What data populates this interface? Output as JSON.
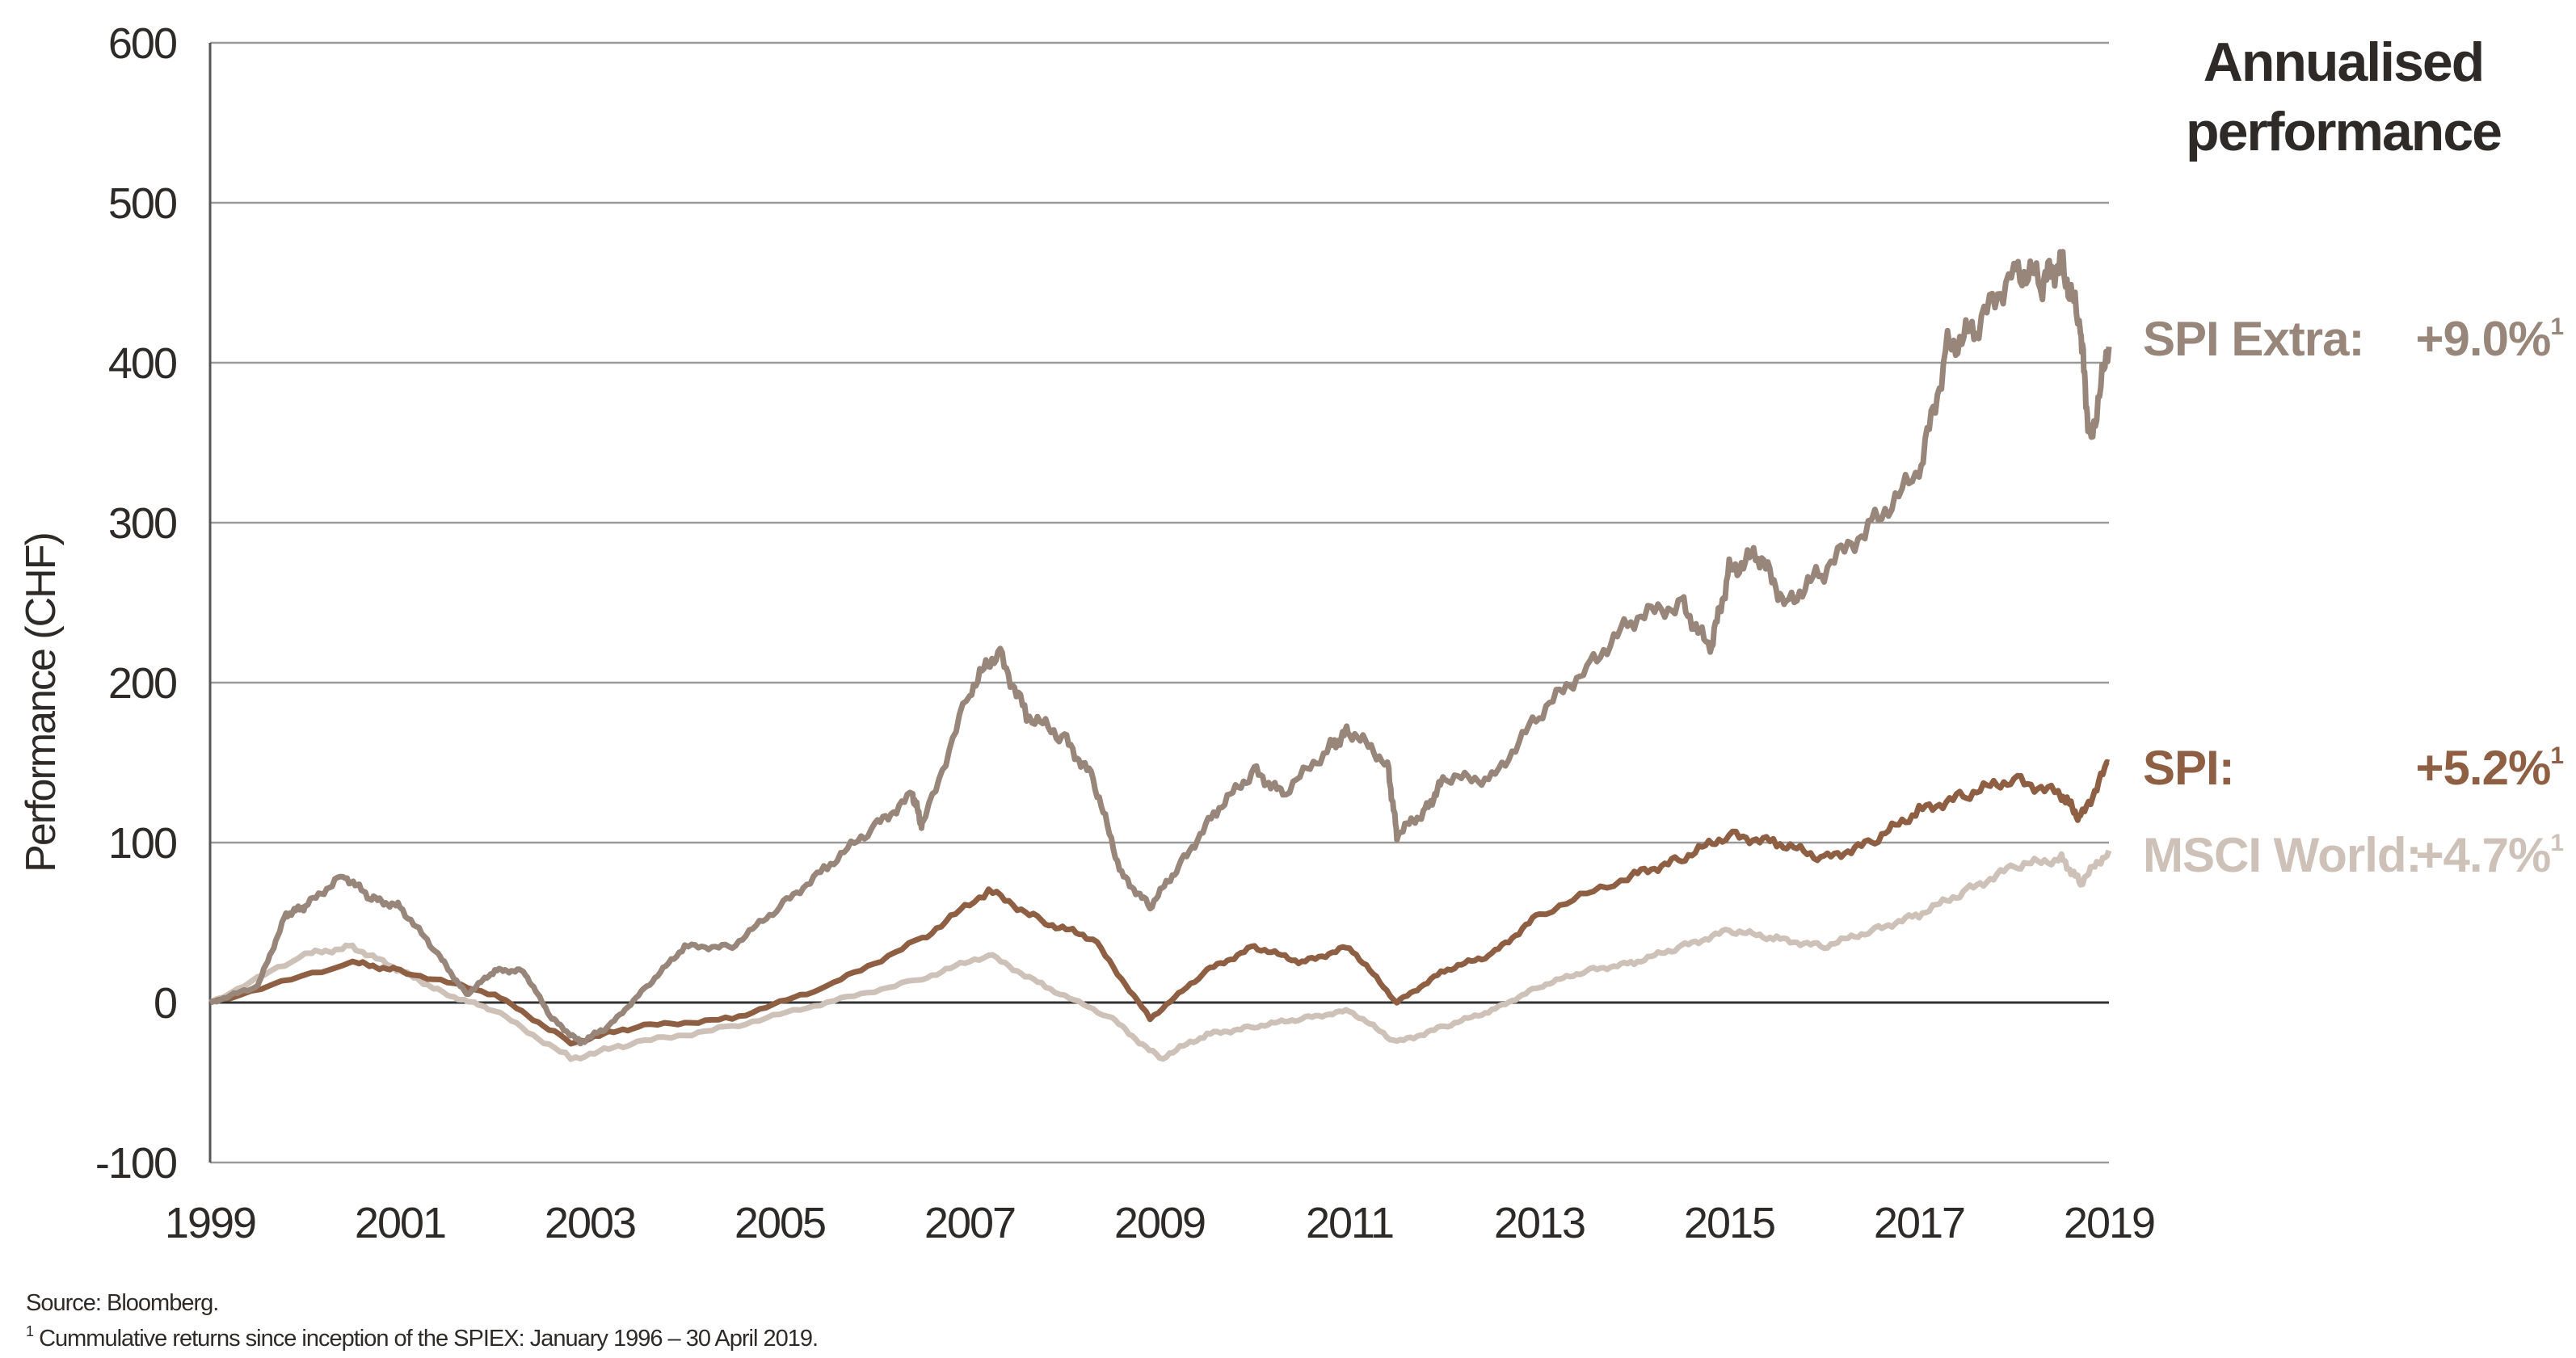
{
  "chart_data": {
    "type": "line",
    "ylabel": "Performance (CHF)",
    "xlabel": "",
    "ylim": [
      -100,
      600
    ],
    "xlim": [
      1999,
      2019
    ],
    "yticks": [
      "600",
      "500",
      "400",
      "300",
      "200",
      "100",
      "0",
      "-100"
    ],
    "ytick_values": [
      600,
      500,
      400,
      300,
      200,
      100,
      0,
      -100
    ],
    "xticks": [
      "1999",
      "2001",
      "2003",
      "2005",
      "2007",
      "2009",
      "2011",
      "2013",
      "2015",
      "2017",
      "2019"
    ],
    "xtick_values": [
      1999,
      2001,
      2003,
      2005,
      2007,
      2009,
      2011,
      2013,
      2015,
      2017,
      2019
    ],
    "grid": "horizontal",
    "legend_title": [
      "Annualised",
      "performance"
    ],
    "series": [
      {
        "name": "SPI Extra:",
        "value_label": "+9.0%",
        "sup": "1",
        "color": "#978679",
        "x": [
          1999,
          1999.5,
          1999.8,
          2000.0,
          2000.4,
          2000.7,
          2001.0,
          2001.4,
          2001.7,
          2002.0,
          2002.3,
          2002.6,
          2002.9,
          2003.2,
          2003.6,
          2004.0,
          2004.5,
          2005.0,
          2005.5,
          2006.0,
          2006.4,
          2006.5,
          2007.0,
          2007.3,
          2007.6,
          2008.0,
          2008.3,
          2008.6,
          2008.9,
          2009.2,
          2009.6,
          2010.0,
          2010.3,
          2010.8,
          2011.0,
          2011.4,
          2011.5,
          2011.8,
          2012.0,
          2012.5,
          2013.0,
          2013.5,
          2014.0,
          2014.5,
          2014.8,
          2015.0,
          2015.3,
          2015.6,
          2016.0,
          2016.5,
          2017.0,
          2017.3,
          2017.6,
          2018.0,
          2018.3,
          2018.5,
          2018.7,
          2018.8,
          2019.0
        ],
        "y": [
          0,
          10,
          55,
          60,
          80,
          65,
          60,
          30,
          5,
          20,
          20,
          -10,
          -25,
          -15,
          10,
          35,
          35,
          60,
          85,
          110,
          130,
          110,
          195,
          220,
          180,
          165,
          140,
          80,
          60,
          85,
          120,
          145,
          130,
          160,
          170,
          150,
          105,
          120,
          140,
          140,
          180,
          210,
          240,
          250,
          220,
          270,
          280,
          250,
          270,
          300,
          330,
          410,
          420,
          460,
          450,
          465,
          420,
          350,
          410
        ]
      },
      {
        "name": "SPI:",
        "value_label": "+5.2%",
        "sup": "1",
        "color": "#8f5f44",
        "x": [
          1999,
          2000.5,
          2001.0,
          2002.0,
          2002.8,
          2003.5,
          2004.5,
          2005.5,
          2006.5,
          2007.2,
          2007.8,
          2008.3,
          2008.9,
          2009.5,
          2010.0,
          2010.5,
          2011.0,
          2011.5,
          2012.0,
          2012.5,
          2013.0,
          2014.0,
          2014.5,
          2015.0,
          2015.5,
          2016.0,
          2016.5,
          2017.0,
          2017.5,
          2018.0,
          2018.5,
          2018.7,
          2019.0
        ],
        "y": [
          0,
          25,
          20,
          5,
          -25,
          -15,
          -10,
          10,
          40,
          70,
          50,
          40,
          -10,
          20,
          35,
          25,
          35,
          0,
          20,
          30,
          55,
          80,
          90,
          105,
          100,
          90,
          100,
          120,
          130,
          140,
          130,
          115,
          150
        ]
      },
      {
        "name": "MSCI World:",
        "value_label": "+4.7%",
        "sup": "1",
        "color": "#cdc1b8",
        "x": [
          1999,
          2000.0,
          2000.5,
          2001.0,
          2001.5,
          2002.0,
          2002.8,
          2003.5,
          2004.5,
          2005.5,
          2006.5,
          2007.2,
          2007.8,
          2008.5,
          2009.0,
          2009.5,
          2010.0,
          2010.5,
          2011.0,
          2011.5,
          2012.0,
          2012.5,
          2013.0,
          2013.5,
          2014.0,
          2014.5,
          2015.0,
          2015.5,
          2016.0,
          2016.5,
          2017.0,
          2017.5,
          2018.0,
          2018.5,
          2018.7,
          2019.0
        ],
        "y": [
          0,
          30,
          35,
          20,
          5,
          -5,
          -35,
          -25,
          -15,
          0,
          15,
          30,
          10,
          -10,
          -35,
          -20,
          -15,
          -10,
          -5,
          -25,
          -15,
          -5,
          10,
          20,
          25,
          35,
          45,
          40,
          35,
          45,
          55,
          70,
          85,
          90,
          75,
          95
        ]
      }
    ]
  },
  "footer": {
    "source": "Source: Bloomberg.",
    "footnote_sup": "1",
    "footnote": " Cummulative returns since inception of the SPIEX:  January 1996 – 30 April 2019."
  }
}
